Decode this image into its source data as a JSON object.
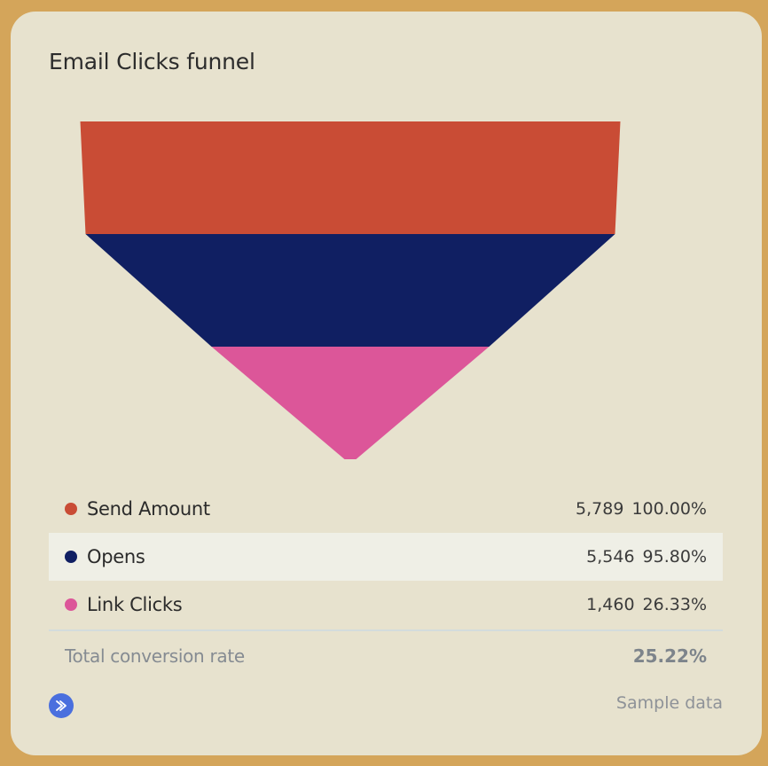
{
  "card": {
    "title": "Email Clicks funnel"
  },
  "chart_data": {
    "type": "funnel",
    "title": "Email Clicks funnel",
    "stages": [
      {
        "name": "Send Amount",
        "value": 5789,
        "value_label": "5,789",
        "percent_label": "100.00%",
        "color": "#c94c35"
      },
      {
        "name": "Opens",
        "value": 5546,
        "value_label": "5,546",
        "percent_label": "95.80%",
        "color": "#101f62"
      },
      {
        "name": "Link Clicks",
        "value": 1460,
        "value_label": "1,460",
        "percent_label": "26.33%",
        "color": "#dc5699"
      }
    ],
    "total_label": "Total conversion rate",
    "total_value": "25.22%"
  },
  "footer": {
    "sample_label": "Sample data",
    "nav_icon": "chevron-right-icon",
    "nav_color": "#4a6fde"
  }
}
